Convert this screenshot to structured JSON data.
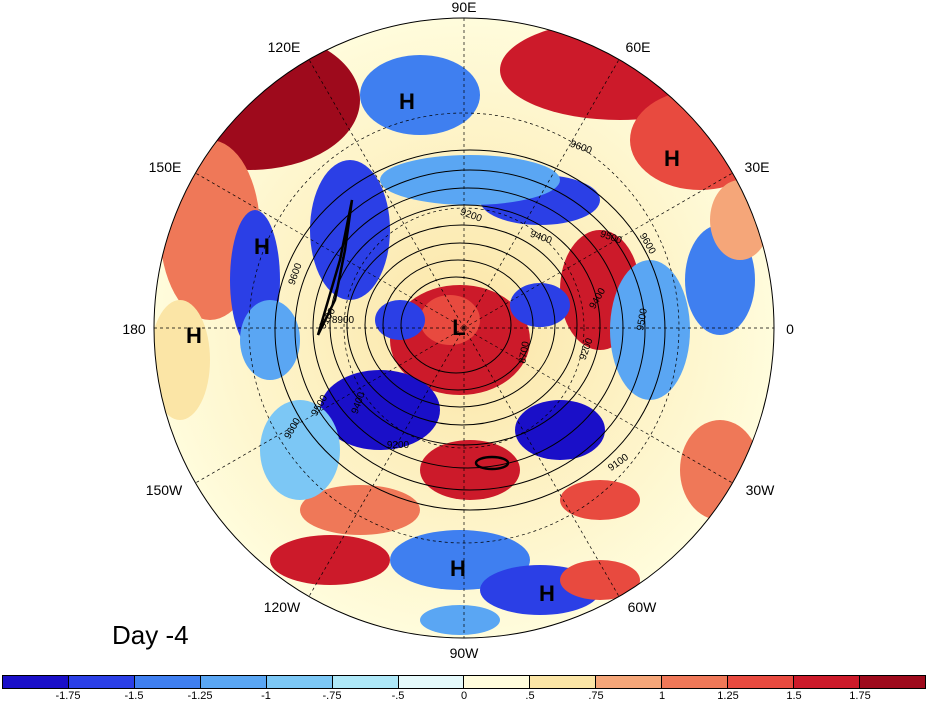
{
  "longitude_labels": [
    "90E",
    "60E",
    "30E",
    "0",
    "30W",
    "60W",
    "90W",
    "120W",
    "150W",
    "180",
    "150E",
    "120E"
  ],
  "pressure_systems": [
    {
      "type": "H",
      "lon": 118,
      "lat": 40
    },
    {
      "type": "H",
      "lon": 30,
      "lat": 45
    },
    {
      "type": "H",
      "lon": 160,
      "lat": 28
    },
    {
      "type": "H",
      "lon": 178,
      "lat": 18
    },
    {
      "type": "H",
      "lon": -92,
      "lat": 18
    },
    {
      "type": "H",
      "lon": -75,
      "lat": 12
    },
    {
      "type": "L",
      "lon": 0,
      "lat": 90
    }
  ],
  "contour_labels": [
    "9600",
    "9500",
    "9400",
    "9200",
    "9100",
    "8900",
    "8700",
    "9200",
    "9400",
    "9500",
    "9600",
    "9600",
    "9500",
    "9400",
    "9200",
    "9100",
    "9600"
  ],
  "day_label": "Day -4",
  "colorbar": {
    "colors": [
      "#1a0fc8",
      "#2b3fe6",
      "#3f7ff0",
      "#5aa6f3",
      "#7cc7f5",
      "#aee8f8",
      "#e4f9fb",
      "#fffcdc",
      "#fbe5a6",
      "#f5a679",
      "#ef7858",
      "#e84a3f",
      "#cc1a2a",
      "#9e0a1c"
    ],
    "tick_labels": [
      "-1.75",
      "-1.5",
      "-1.25",
      "-1",
      "-.75",
      "-.5",
      "0",
      ".5",
      ".75",
      "1",
      "1.25",
      "1.5",
      "1.75"
    ]
  }
}
